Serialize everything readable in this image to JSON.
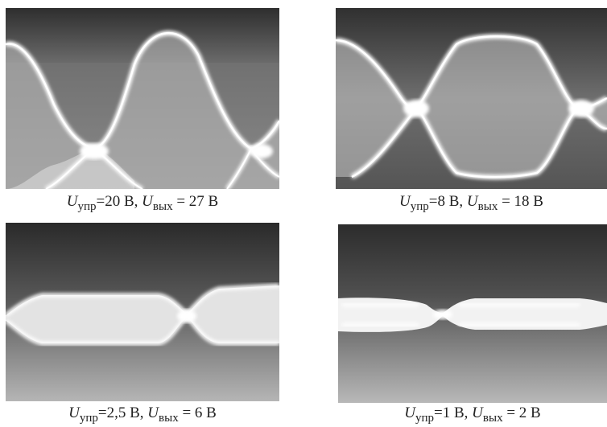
{
  "figure": {
    "panels": [
      {
        "u_control": "20 В",
        "u_out": "27 В",
        "caption": {
          "pre": "U",
          "sub1": "упр",
          "mid": "=20 В, ",
          "u2": "U",
          "sub2": "вых",
          "post": " = 27 В"
        }
      },
      {
        "u_control": "8 В",
        "u_out": "18 В",
        "caption": {
          "pre": "U",
          "sub1": "упр",
          "mid": "=8 В, ",
          "u2": "U",
          "sub2": "вых",
          "post": " = 18 В"
        }
      },
      {
        "u_control": "2,5 В",
        "u_out": "6 В",
        "caption": {
          "pre": "U",
          "sub1": "упр",
          "mid": "=2,5 В, ",
          "u2": "U",
          "sub2": "вых",
          "post": " = 6 В"
        }
      },
      {
        "u_control": "1 В",
        "u_out": "2 В",
        "caption": {
          "pre": "U",
          "sub1": "упр",
          "mid": "=1 В, ",
          "u2": "U",
          "sub2": "вых",
          "post": " = 2 В"
        }
      }
    ]
  }
}
